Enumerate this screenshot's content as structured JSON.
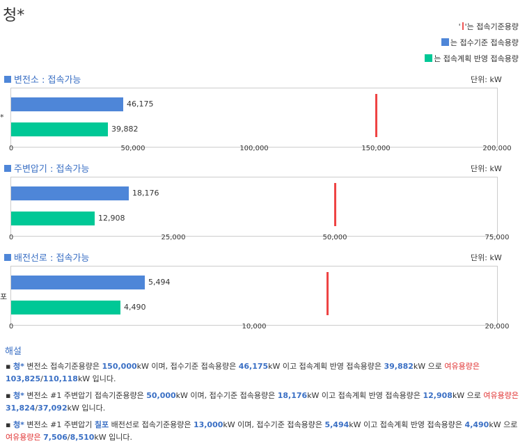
{
  "title": "청*",
  "legend": {
    "capacity": "는 접속기준용량",
    "received": "는 접수기준 접속용량",
    "planned": "는 접속계획 반영 접속용량",
    "quote_open": "'",
    "quote_close": "'"
  },
  "colors": {
    "received": "#4e86d8",
    "planned": "#00c896",
    "capacity": "#e44444"
  },
  "unit_label": "단위: kW",
  "chart_data": [
    {
      "type": "bar",
      "title": "변전소 : 접속가능",
      "side_label": "*",
      "series": [
        {
          "name": "접수기준 접속용량",
          "value": 46175,
          "label": "46,175"
        },
        {
          "name": "접속계획 반영 접속용량",
          "value": 39882,
          "label": "39,882"
        }
      ],
      "capacity": 150000,
      "xlim": [
        0,
        200000
      ],
      "ticks": [
        "0",
        "50,000",
        "100,000",
        "150,000",
        "200,000"
      ]
    },
    {
      "type": "bar",
      "title": "주변압기 : 접속가능",
      "side_label": "",
      "series": [
        {
          "name": "접수기준 접속용량",
          "value": 18176,
          "label": "18,176"
        },
        {
          "name": "접속계획 반영 접속용량",
          "value": 12908,
          "label": "12,908"
        }
      ],
      "capacity": 50000,
      "xlim": [
        0,
        75000
      ],
      "ticks": [
        "0",
        "25,000",
        "50,000",
        "75,000"
      ]
    },
    {
      "type": "bar",
      "title": "배전선로 : 접속가능",
      "side_label": "포",
      "series": [
        {
          "name": "접수기준 접속용량",
          "value": 5494,
          "label": "5,494"
        },
        {
          "name": "접속계획 반영 접속용량",
          "value": 4490,
          "label": "4,490"
        }
      ],
      "capacity": 13000,
      "xlim": [
        0,
        20000
      ],
      "ticks": [
        "0",
        "10,000",
        "20,000"
      ]
    }
  ],
  "explain": {
    "heading": "해설",
    "p1": {
      "a": "청*",
      "b": " 변전소 접속기준용량은 ",
      "cap": "150,000",
      "c": "kW 이며, 접수기준 접속용량은 ",
      "rec": "46,175",
      "d": "kW 이고 접속계획 반영 접속용량은 ",
      "plan": "39,882",
      "e": "kW 으로 ",
      "spare_lbl": "여유용량은",
      "spare_a": "103,825",
      "slash": "/",
      "spare_b": "110,118",
      "f": "kW 입니다."
    },
    "p2": {
      "a": "청*",
      "b": " 변전소 #1 주변압기 접속기준용량은 ",
      "cap": "50,000",
      "c": "kW 이며, 접수기준 접속용량은 ",
      "rec": "18,176",
      "d": "kW 이고 접속계획 반영 접속용량은 ",
      "plan": "12,908",
      "e": "kW 으로 ",
      "spare_lbl": "여유용량은",
      "spare_a": "31,824",
      "slash": "/",
      "spare_b": "37,092",
      "f": "kW 입니다."
    },
    "p3": {
      "a": "청*",
      "b": " 변전소 #1 주변압기 ",
      "line": "칠포",
      "b2": " 배전선로 접속기준용량은 ",
      "cap": "13,000",
      "c": "kW 이며, 접수기준 접속용량은 ",
      "rec": "5,494",
      "d": "kW 이고 접속계획 반영 접속용량은 ",
      "plan": "4,490",
      "e": "kW 으로 ",
      "spare_lbl": "여유용량은",
      "spare_a": "7,506",
      "slash": "/",
      "spare_b": "8,510",
      "f": "kW 입니다."
    }
  }
}
